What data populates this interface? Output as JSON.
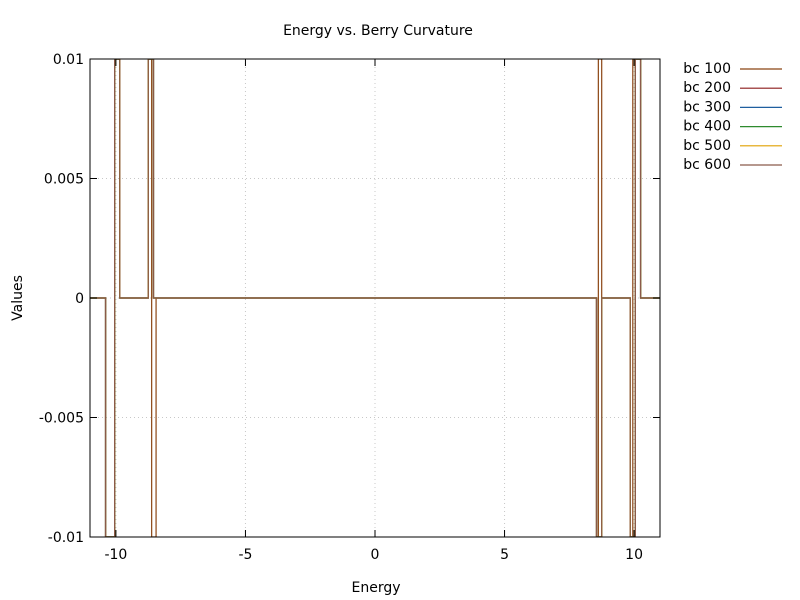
{
  "chart_data": {
    "type": "line",
    "title": "Energy vs. Berry Curvature",
    "xlabel": "Energy",
    "ylabel": "Values",
    "xlim": [
      -11,
      11
    ],
    "ylim": [
      -0.01,
      0.01
    ],
    "x_ticks": [
      -10,
      -5,
      0,
      5,
      10
    ],
    "x_tick_labels": [
      "-10",
      "-5",
      "0",
      "5",
      "10"
    ],
    "y_ticks": [
      -0.01,
      -0.005,
      0,
      0.005,
      0.01
    ],
    "y_tick_labels": [
      "-0.01",
      "-0.005",
      "0",
      "0.005",
      "0.01"
    ],
    "grid": true,
    "legend_position": "outside-top-right",
    "series": [
      {
        "name": "bc 100",
        "color": "#8b4513",
        "x": [
          -11,
          -10.4,
          -10.4,
          -10.05,
          -10.05,
          -9.95,
          -9.95,
          -9.85,
          -9.85,
          -8.75,
          -8.75,
          -8.62,
          -8.62,
          -8.55,
          -8.55,
          -8.45,
          -8.45,
          8.55,
          8.55,
          8.62,
          8.62,
          8.75,
          8.75,
          9.85,
          9.85,
          9.95,
          9.95,
          10.05,
          10.05,
          10.25,
          10.25,
          11
        ],
        "y": [
          0,
          0,
          -0.01,
          -0.01,
          0.01,
          0.01,
          0.01,
          0.01,
          0,
          0,
          0.01,
          0.01,
          -0.01,
          -0.01,
          -0.01,
          -0.01,
          0,
          0,
          -0.01,
          -0.01,
          0.01,
          0.01,
          0,
          0,
          -0.01,
          -0.01,
          0.01,
          0.01,
          0.01,
          0.01,
          0,
          0
        ]
      },
      {
        "name": "bc 200",
        "color": "#8b1a1a",
        "x": [
          -11,
          -10.4,
          -10.4,
          -10.05,
          -10.05,
          -9.85,
          -9.85,
          -8.75,
          -8.75,
          -8.55,
          -8.55,
          8.55,
          8.55,
          8.75,
          8.75,
          9.85,
          9.85,
          10.05,
          10.05,
          10.25,
          10.25,
          11
        ],
        "y": [
          0,
          0,
          -0.01,
          -0.01,
          0.01,
          0.01,
          0,
          0,
          0.01,
          0.01,
          0,
          0,
          -0.01,
          -0.01,
          0,
          0,
          -0.01,
          -0.01,
          0.01,
          0.01,
          0,
          0
        ]
      },
      {
        "name": "bc 300",
        "color": "#1f5f9f",
        "x": [
          -11,
          -10.4,
          -10.4,
          -10.05,
          -10.05,
          -9.85,
          -9.85,
          -8.75,
          -8.75,
          -8.55,
          -8.55,
          8.55,
          8.55,
          8.75,
          8.75,
          9.85,
          9.85,
          10.05,
          10.05,
          10.25,
          10.25,
          11
        ],
        "y": [
          0,
          0,
          -0.01,
          -0.01,
          0.01,
          0.01,
          0,
          0,
          0.01,
          0.01,
          0,
          0,
          -0.01,
          -0.01,
          0,
          0,
          -0.01,
          -0.01,
          0.01,
          0.01,
          0,
          0
        ]
      },
      {
        "name": "bc 400",
        "color": "#2e8b2e",
        "x": [
          -11,
          -10.4,
          -10.4,
          -10.05,
          -10.05,
          -9.85,
          -9.85,
          -8.75,
          -8.75,
          -8.55,
          -8.55,
          8.55,
          8.55,
          8.75,
          8.75,
          9.85,
          9.85,
          10.05,
          10.05,
          10.25,
          10.25,
          11
        ],
        "y": [
          0,
          0,
          -0.01,
          -0.01,
          0.01,
          0.01,
          0,
          0,
          0.01,
          0.01,
          0,
          0,
          -0.01,
          -0.01,
          0,
          0,
          -0.01,
          -0.01,
          0.01,
          0.01,
          0,
          0
        ]
      },
      {
        "name": "bc 500",
        "color": "#e0a000",
        "x": [
          -11,
          -10.4,
          -10.4,
          -10.05,
          -10.05,
          -9.85,
          -9.85,
          -8.75,
          -8.75,
          -8.55,
          -8.55,
          8.55,
          8.55,
          8.75,
          8.75,
          9.85,
          9.85,
          10.05,
          10.05,
          10.25,
          10.25,
          11
        ],
        "y": [
          0,
          0,
          -0.01,
          -0.01,
          0.01,
          0.01,
          0,
          0,
          0.01,
          0.01,
          0,
          0,
          -0.01,
          -0.01,
          0,
          0,
          -0.01,
          -0.01,
          0.01,
          0.01,
          0,
          0
        ]
      },
      {
        "name": "bc 600",
        "color": "#8b5a4a",
        "x": [
          -11,
          -10.4,
          -10.4,
          -10.05,
          -10.05,
          -9.85,
          -9.85,
          -8.75,
          -8.75,
          -8.55,
          -8.55,
          8.55,
          8.55,
          8.75,
          8.75,
          9.85,
          9.85,
          10.05,
          10.05,
          10.25,
          10.25,
          11
        ],
        "y": [
          0,
          0,
          -0.01,
          -0.01,
          0.01,
          0.01,
          0,
          0,
          0.01,
          0.01,
          0,
          0,
          -0.01,
          -0.01,
          0,
          0,
          -0.01,
          -0.01,
          0.01,
          0.01,
          0,
          0
        ]
      }
    ]
  }
}
